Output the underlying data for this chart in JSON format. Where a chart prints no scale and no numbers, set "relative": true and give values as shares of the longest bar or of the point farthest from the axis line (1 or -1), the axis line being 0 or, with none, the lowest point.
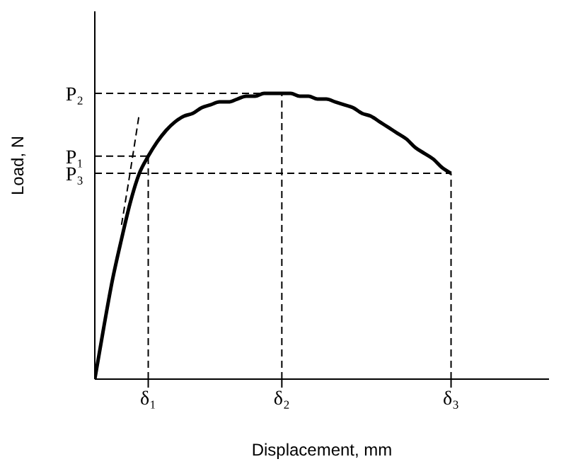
{
  "chart_data": {
    "type": "line",
    "xlabel": "Displacement, mm",
    "ylabel": "Load, N",
    "relative": true,
    "categories": [
      null,
      null,
      null,
      null,
      null,
      null,
      "δ₁",
      null,
      null,
      null,
      null,
      null,
      null,
      null,
      null,
      null,
      null,
      null,
      null,
      null,
      null,
      "δ₂",
      null,
      null,
      null,
      null,
      null,
      null,
      null,
      null,
      null,
      null,
      null,
      null,
      null,
      null,
      null,
      null,
      null,
      null,
      "δ₃",
      null,
      null,
      null,
      null,
      null,
      null,
      null,
      null,
      null,
      null,
      null
    ],
    "series": [
      {
        "color": "#000000",
        "line_style": "solid",
        "values": [
          0,
          0.18,
          0.35,
          0.49,
          0.62,
          0.72,
          0.78,
          0.83,
          0.87,
          0.9,
          0.92,
          0.93,
          0.95,
          0.96,
          0.97,
          0.97,
          0.98,
          0.99,
          0.99,
          1,
          1,
          1,
          1,
          0.99,
          0.99,
          0.98,
          0.98,
          0.97,
          0.96,
          0.95,
          0.93,
          0.92,
          0.9,
          0.88,
          0.86,
          0.84,
          0.81,
          0.79,
          0.77,
          0.74,
          0.72,
          null,
          null,
          null,
          null,
          null,
          null,
          null,
          null,
          null,
          null,
          null
        ]
      },
      {
        "color": "#000000",
        "line_style": "dashed",
        "values": [
          null,
          null,
          null,
          0.54,
          0.73,
          0.93,
          null,
          null,
          null,
          null,
          null,
          null,
          null,
          null,
          null,
          null,
          null,
          null,
          null,
          null,
          null,
          null,
          null,
          null,
          null,
          null,
          null,
          null,
          null,
          null,
          null,
          null,
          null,
          null,
          null,
          null,
          null,
          null,
          null,
          null,
          null,
          null,
          null,
          null,
          null,
          null,
          null,
          null,
          null,
          null,
          null,
          null
        ]
      }
    ],
    "ref_lines": [
      {
        "axis": "x",
        "value": "δ₁",
        "color": "#000000",
        "line_style": "dashed"
      },
      {
        "axis": "x",
        "value": "δ₂",
        "color": "#000000",
        "line_style": "dashed"
      },
      {
        "axis": "x",
        "value": "δ₃",
        "color": "#000000",
        "line_style": "dashed"
      },
      {
        "axis": "y",
        "value": 0.78,
        "label": "P₁",
        "color": "#000000",
        "line_style": "dashed"
      },
      {
        "axis": "y",
        "value": 1,
        "label": "P₂",
        "color": "#000000",
        "line_style": "dashed"
      },
      {
        "axis": "y",
        "value": 0.72,
        "label": "P₃",
        "color": "#000000",
        "line_style": "dashed"
      }
    ],
    "marker": "none"
  }
}
